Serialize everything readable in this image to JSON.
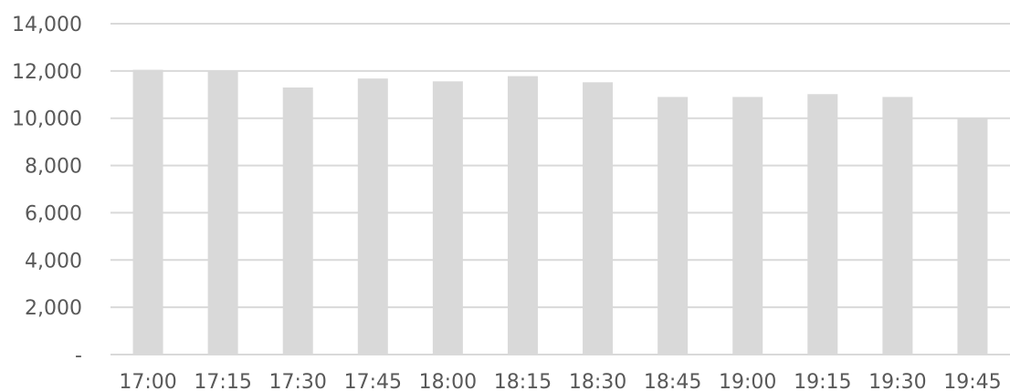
{
  "chart_data": {
    "type": "bar",
    "title": "",
    "xlabel": "",
    "ylabel": "",
    "categories": [
      "17:00",
      "17:15",
      "17:30",
      "17:45",
      "18:00",
      "18:15",
      "18:30",
      "18:45",
      "19:00",
      "19:15",
      "19:30",
      "19:45"
    ],
    "values": [
      12050,
      12000,
      11300,
      11680,
      11560,
      11780,
      11520,
      10900,
      10900,
      11020,
      10900,
      10020
    ],
    "ylim": [
      0,
      14000
    ],
    "yticks": [
      0,
      2000,
      4000,
      6000,
      8000,
      10000,
      12000,
      14000
    ],
    "ytick_labels": [
      "-",
      "2,000",
      "4,000",
      "6,000",
      "8,000",
      "10,000",
      "12,000",
      "14,000"
    ],
    "grid": true,
    "legend": "none",
    "colors": {
      "bar": "#d9d9d9",
      "grid": "#d9d9d9",
      "text": "#595959"
    }
  }
}
